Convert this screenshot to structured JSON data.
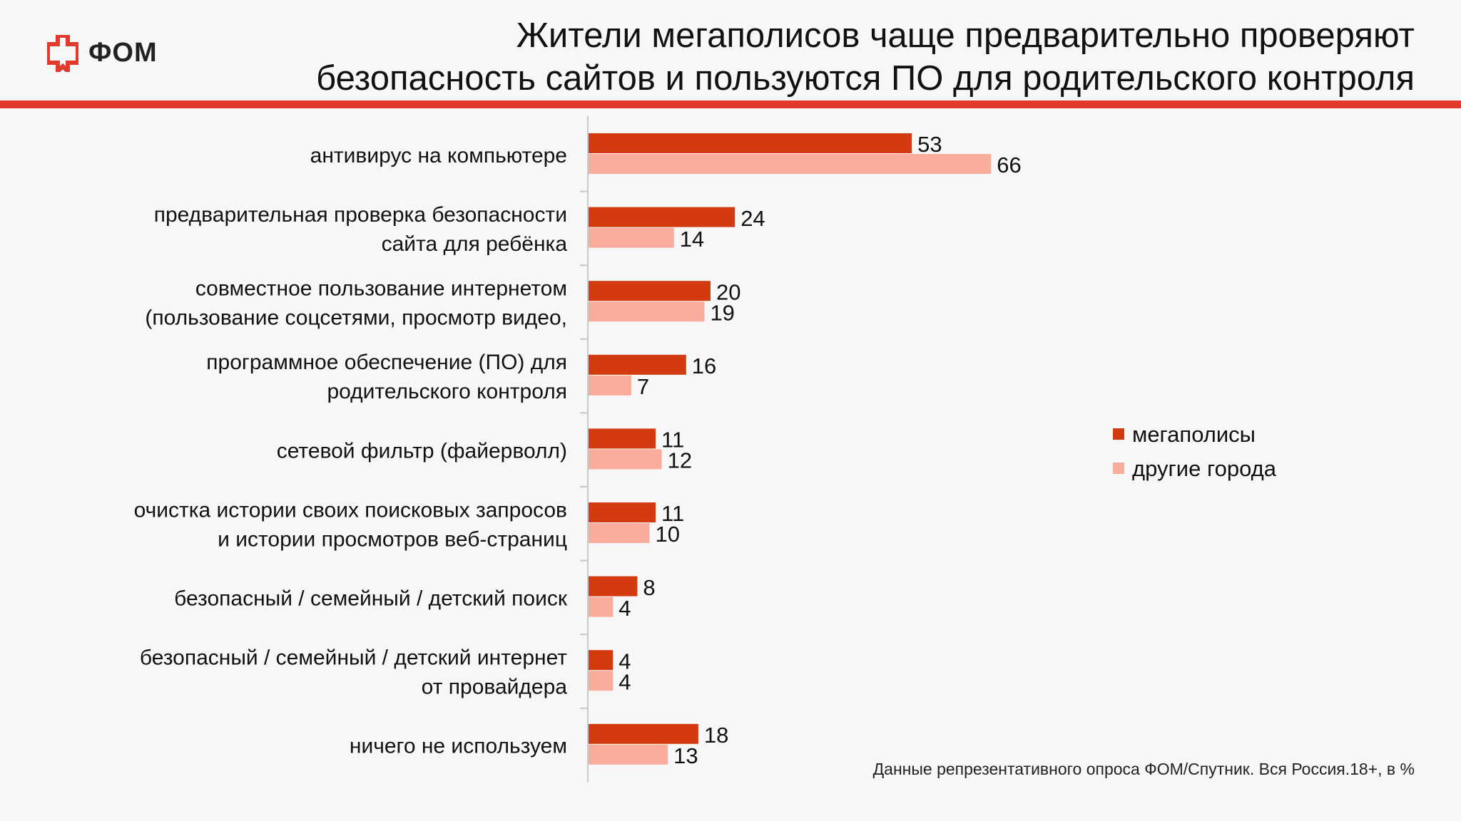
{
  "header": {
    "logo_text": "ФОМ",
    "title_lines": [
      "Жители мегаполисов чаще предварительно проверяют",
      "безопасность сайтов и пользуются ПО для родительского контроля"
    ]
  },
  "colors": {
    "accent": "#e13b2d",
    "series_megapolis": "#d33a0f",
    "series_other": "#f9ac9c"
  },
  "footnote": "Данные репрезентативного опроса ФОМ/Спутник. Вся Россия.18+, в %",
  "chart_data": {
    "type": "bar",
    "orientation": "horizontal",
    "categories": [
      [
        "антивирус на компьютере"
      ],
      [
        "предварительная проверка безопасности",
        "сайта для ребёнка"
      ],
      [
        "совместное пользование интернетом",
        "(пользование соцсетями, просмотр видео,"
      ],
      [
        "программное обеспечение (ПО) для",
        "родительского контроля"
      ],
      [
        "сетевой фильтр (файерволл)"
      ],
      [
        "очистка истории своих поисковых запросов",
        "и истории просмотров веб-страниц"
      ],
      [
        "безопасный / семейный / детский поиск"
      ],
      [
        "безопасный / семейный / детский интернет",
        "от провайдера"
      ],
      [
        "ничего не используем"
      ]
    ],
    "series": [
      {
        "name": "мегаполисы",
        "color": "#d33a0f",
        "values": [
          53,
          24,
          20,
          16,
          11,
          11,
          8,
          4,
          18
        ]
      },
      {
        "name": "другие города",
        "color": "#f9ac9c",
        "values": [
          66,
          14,
          19,
          7,
          12,
          10,
          4,
          4,
          13
        ]
      }
    ],
    "xlim": [
      0,
      80
    ],
    "data_labels": true,
    "legend_position": "right",
    "grid": false
  }
}
